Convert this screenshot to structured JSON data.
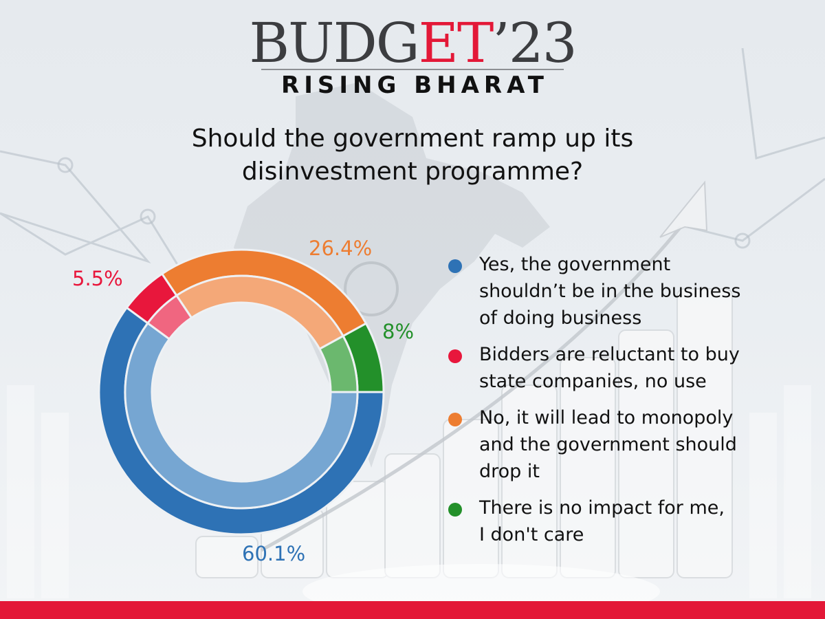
{
  "header": {
    "brand_prefix": "BUDG",
    "brand_accent": "ET",
    "brand_suffix": "’23",
    "subtitle": "RISING BHARAT"
  },
  "question": {
    "line1": "Should the government ramp up its",
    "line2": "disinvestment programme?"
  },
  "colors": {
    "accent_red": "#e31837",
    "yes_blue": "#2e72b5",
    "bidders_red": "#e8173c",
    "no_orange": "#ed7d31",
    "no_impact_green": "#23902a"
  },
  "legend": [
    {
      "lines": [
        "Yes, the government",
        "shouldn’t be in the business",
        "of doing business"
      ],
      "color": "#2e72b5"
    },
    {
      "lines": [
        "Bidders are reluctant to buy",
        "state companies, no use"
      ],
      "color": "#e8173c"
    },
    {
      "lines": [
        "No, it will lead to monopoly",
        "and the government should",
        "drop it"
      ],
      "color": "#ed7d31"
    },
    {
      "lines": [
        "There is no impact for me,",
        "I don't care"
      ],
      "color": "#23902a"
    }
  ],
  "labels": {
    "yes": "60.1%",
    "bidders": "5.5%",
    "no": "26.4%",
    "no_impact": "8%"
  },
  "chart_data": {
    "type": "pie",
    "subtype": "donut",
    "title": "Should the government ramp up its disinvestment programme?",
    "categories": [
      "Yes, the government shouldn’t be in the business of doing business",
      "Bidders are reluctant to buy state companies, no use",
      "No, it will lead to monopoly and the government should drop it",
      "There is no impact for me, I don't care"
    ],
    "values": [
      60.1,
      5.5,
      26.4,
      8
    ],
    "unit": "%",
    "colors": [
      "#2e72b5",
      "#e8173c",
      "#ed7d31",
      "#23902a"
    ],
    "legend_position": "right"
  }
}
